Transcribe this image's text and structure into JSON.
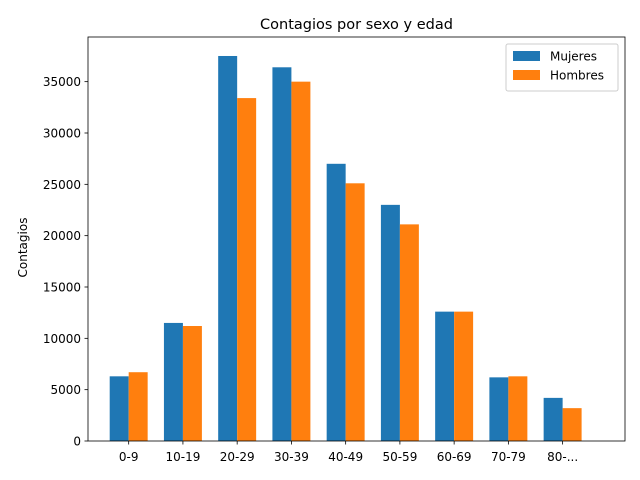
{
  "chart_data": {
    "type": "bar",
    "title": "Contagios por sexo y edad",
    "xlabel": "",
    "ylabel": "Contagios",
    "categories": [
      "0-9",
      "10-19",
      "20-29",
      "30-39",
      "40-49",
      "50-59",
      "60-69",
      "70-79",
      "80-..."
    ],
    "series": [
      {
        "name": "Mujeres",
        "color": "#1f77b4",
        "values": [
          6300,
          11500,
          37500,
          36400,
          27000,
          23000,
          12600,
          6200,
          4200
        ]
      },
      {
        "name": "Hombres",
        "color": "#ff7f0e",
        "values": [
          6700,
          11200,
          33400,
          35000,
          25100,
          21100,
          12600,
          6300,
          3200
        ]
      }
    ],
    "yticks": [
      0,
      5000,
      10000,
      15000,
      20000,
      25000,
      30000,
      35000
    ],
    "ylim": [
      0,
      39350
    ],
    "grid": false,
    "legend_position": "top-right"
  }
}
